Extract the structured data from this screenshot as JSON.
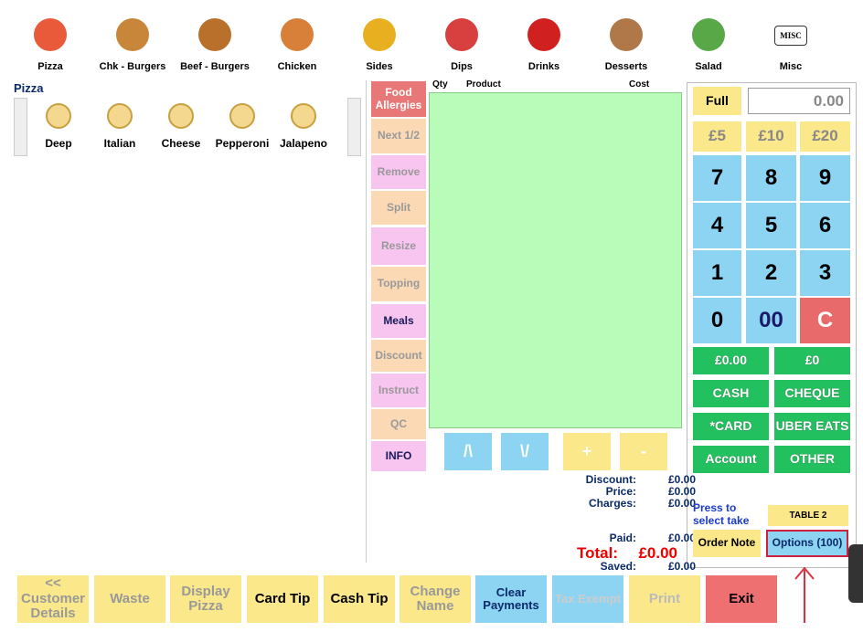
{
  "categories": [
    "Pizza",
    "Chk - Burgers",
    "Beef - Burgers",
    "Chicken",
    "Sides",
    "Dips",
    "Drinks",
    "Desserts",
    "Salad",
    "Misc"
  ],
  "misc_icon": "MISC",
  "section_title": "Pizza",
  "items": [
    "Deep",
    "Italian",
    "Cheese",
    "Pepperoni",
    "Jalapeno"
  ],
  "order_header": {
    "qty": "Qty",
    "product": "Product",
    "cost": "Cost"
  },
  "side_buttons": [
    "Food Allergies",
    "Next 1/2",
    "Remove",
    "Split",
    "Resize",
    "Topping",
    "Meals",
    "Discount",
    "Instruct",
    "QC",
    "INFO"
  ],
  "nav_buttons": [
    "/\\",
    "\\/",
    "+",
    "-"
  ],
  "totals": [
    {
      "label": "Discount:",
      "value": "£0.00"
    },
    {
      "label": "Price:",
      "value": "£0.00"
    },
    {
      "label": "Charges:",
      "value": "£0.00"
    },
    {
      "label": "Paid:",
      "value": "£0.00"
    },
    {
      "label": "Total:",
      "value": "£0.00"
    },
    {
      "label": "Saved:",
      "value": "£0.00"
    }
  ],
  "keypad": {
    "full": "Full",
    "display": "0.00",
    "quick": [
      "£5",
      "£10",
      "£20"
    ],
    "keys": [
      "7",
      "8",
      "9",
      "4",
      "5",
      "6",
      "1",
      "2",
      "3",
      "0",
      "00",
      "C"
    ]
  },
  "payments": [
    "£0.00",
    "£0",
    "CASH",
    "CHEQUE",
    "*CARD",
    "UBER EATS",
    "Account",
    "OTHER"
  ],
  "take_prompt": "Press to select take",
  "table": "TABLE 2",
  "order_note": "Order Note",
  "options": "Options (100)",
  "bottom_buttons": [
    "<< Customer Details",
    "Waste",
    "Display Pizza",
    "Card Tip",
    "Cash Tip",
    "Change Name",
    "Clear Payments",
    "Tax Exempt",
    "Print",
    "Exit"
  ]
}
